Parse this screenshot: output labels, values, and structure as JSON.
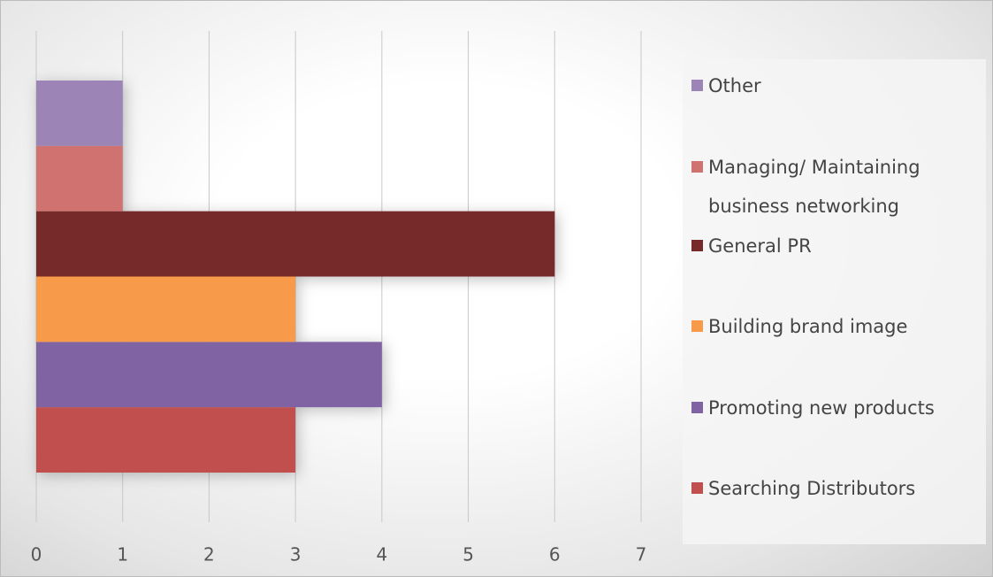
{
  "chart_data": {
    "type": "bar",
    "orientation": "horizontal",
    "series": [
      {
        "name": "Searching Distributors",
        "color": "#c0504d",
        "values": [
          3
        ]
      },
      {
        "name": "Promoting new products",
        "color": "#8064a2",
        "values": [
          4
        ]
      },
      {
        "name": "Building brand image",
        "color": "#f79a4a",
        "values": [
          3
        ]
      },
      {
        "name": "General PR",
        "color": "#772a2a",
        "values": [
          6
        ]
      },
      {
        "name": "Managing/ Maintaining business networking",
        "color": "#d07370",
        "values": [
          1
        ]
      },
      {
        "name": "Other",
        "color": "#9c85b6",
        "values": [
          1
        ]
      }
    ],
    "xlim": [
      0,
      7
    ],
    "xticks": [
      0,
      1,
      2,
      3,
      4,
      5,
      6,
      7
    ],
    "grid": true,
    "legend": "right"
  }
}
